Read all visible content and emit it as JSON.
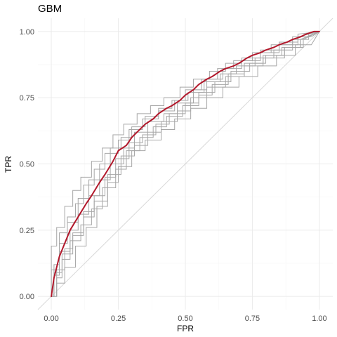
{
  "chart_data": {
    "type": "line",
    "title": "GBM",
    "xlabel": "FPR",
    "ylabel": "TPR",
    "xlim": [
      -0.05,
      1.05
    ],
    "ylim": [
      -0.05,
      1.05
    ],
    "x_ticks": [
      "0.00",
      "0.25",
      "0.50",
      "0.75",
      "1.00"
    ],
    "y_ticks": [
      "0.00",
      "0.25",
      "0.50",
      "0.75",
      "1.00"
    ],
    "grid": true,
    "legend": "none",
    "colors": {
      "fold_curves": "#a6a6a6",
      "mean_curve": "#b2182b",
      "diagonal": "#d9d9d9",
      "grid_major": "#ebebeb",
      "grid_minor": "#f5f5f5"
    },
    "reference_line": {
      "x": [
        0,
        1
      ],
      "y": [
        0,
        1
      ]
    },
    "series": [
      {
        "role": "mean",
        "x": [
          0.0,
          0.01,
          0.02,
          0.03,
          0.05,
          0.07,
          0.1,
          0.13,
          0.15,
          0.18,
          0.2,
          0.23,
          0.25,
          0.28,
          0.3,
          0.33,
          0.35,
          0.38,
          0.4,
          0.43,
          0.45,
          0.48,
          0.5,
          0.53,
          0.55,
          0.58,
          0.6,
          0.63,
          0.65,
          0.68,
          0.7,
          0.73,
          0.75,
          0.78,
          0.8,
          0.83,
          0.85,
          0.88,
          0.9,
          0.93,
          0.95,
          0.98,
          1.0
        ],
        "y": [
          0.0,
          0.07,
          0.11,
          0.15,
          0.2,
          0.25,
          0.3,
          0.35,
          0.38,
          0.43,
          0.46,
          0.51,
          0.55,
          0.57,
          0.6,
          0.63,
          0.65,
          0.67,
          0.69,
          0.71,
          0.72,
          0.74,
          0.76,
          0.78,
          0.8,
          0.82,
          0.83,
          0.85,
          0.86,
          0.87,
          0.88,
          0.9,
          0.91,
          0.92,
          0.93,
          0.94,
          0.95,
          0.96,
          0.97,
          0.98,
          0.99,
          1.0,
          1.0
        ]
      },
      {
        "role": "fold",
        "x": [
          0.0,
          0.01,
          0.01,
          0.03,
          0.03,
          0.06,
          0.06,
          0.1,
          0.1,
          0.14,
          0.14,
          0.18,
          0.18,
          0.22,
          0.22,
          0.26,
          0.26,
          0.3,
          0.3,
          0.35,
          0.35,
          0.4,
          0.4,
          0.45,
          0.45,
          0.5,
          0.5,
          0.56,
          0.56,
          0.62,
          0.62,
          0.68,
          0.68,
          0.75,
          0.75,
          0.82,
          0.82,
          0.9,
          0.9,
          0.97,
          1.0
        ],
        "y": [
          0.0,
          0.0,
          0.12,
          0.12,
          0.2,
          0.2,
          0.28,
          0.28,
          0.37,
          0.37,
          0.44,
          0.44,
          0.5,
          0.5,
          0.56,
          0.56,
          0.6,
          0.6,
          0.64,
          0.64,
          0.68,
          0.68,
          0.71,
          0.71,
          0.74,
          0.74,
          0.78,
          0.78,
          0.82,
          0.82,
          0.86,
          0.86,
          0.89,
          0.89,
          0.92,
          0.92,
          0.95,
          0.95,
          0.98,
          0.98,
          1.0
        ]
      },
      {
        "role": "fold",
        "x": [
          0.0,
          0.02,
          0.02,
          0.04,
          0.04,
          0.08,
          0.08,
          0.12,
          0.12,
          0.16,
          0.16,
          0.2,
          0.2,
          0.24,
          0.24,
          0.29,
          0.29,
          0.34,
          0.34,
          0.39,
          0.39,
          0.44,
          0.44,
          0.5,
          0.5,
          0.55,
          0.55,
          0.61,
          0.61,
          0.67,
          0.67,
          0.74,
          0.74,
          0.8,
          0.8,
          0.87,
          0.87,
          0.93,
          0.93,
          1.0
        ],
        "y": [
          0.0,
          0.0,
          0.07,
          0.07,
          0.16,
          0.16,
          0.24,
          0.24,
          0.32,
          0.32,
          0.38,
          0.38,
          0.45,
          0.45,
          0.52,
          0.52,
          0.58,
          0.58,
          0.61,
          0.61,
          0.65,
          0.65,
          0.69,
          0.69,
          0.73,
          0.73,
          0.77,
          0.77,
          0.81,
          0.81,
          0.85,
          0.85,
          0.88,
          0.88,
          0.91,
          0.91,
          0.94,
          0.94,
          0.97,
          1.0
        ]
      },
      {
        "role": "fold",
        "x": [
          0.0,
          0.0,
          0.02,
          0.02,
          0.05,
          0.05,
          0.08,
          0.08,
          0.11,
          0.11,
          0.15,
          0.15,
          0.19,
          0.19,
          0.23,
          0.23,
          0.27,
          0.27,
          0.32,
          0.32,
          0.37,
          0.37,
          0.42,
          0.42,
          0.48,
          0.48,
          0.53,
          0.53,
          0.59,
          0.59,
          0.65,
          0.65,
          0.71,
          0.71,
          0.78,
          0.78,
          0.85,
          0.85,
          0.92,
          0.92,
          1.0
        ],
        "y": [
          0.0,
          0.19,
          0.19,
          0.26,
          0.26,
          0.34,
          0.34,
          0.4,
          0.4,
          0.45,
          0.45,
          0.51,
          0.51,
          0.56,
          0.56,
          0.61,
          0.61,
          0.65,
          0.65,
          0.69,
          0.69,
          0.72,
          0.72,
          0.75,
          0.75,
          0.79,
          0.79,
          0.82,
          0.82,
          0.85,
          0.85,
          0.88,
          0.88,
          0.9,
          0.9,
          0.93,
          0.93,
          0.96,
          0.96,
          0.99,
          1.0
        ]
      },
      {
        "role": "fold",
        "x": [
          0.0,
          0.01,
          0.01,
          0.04,
          0.04,
          0.07,
          0.07,
          0.11,
          0.11,
          0.15,
          0.15,
          0.19,
          0.19,
          0.24,
          0.24,
          0.28,
          0.28,
          0.33,
          0.33,
          0.38,
          0.38,
          0.43,
          0.43,
          0.49,
          0.49,
          0.55,
          0.55,
          0.6,
          0.6,
          0.66,
          0.66,
          0.72,
          0.72,
          0.79,
          0.79,
          0.86,
          0.86,
          0.93,
          0.93,
          1.0
        ],
        "y": [
          0.0,
          0.0,
          0.09,
          0.09,
          0.14,
          0.14,
          0.21,
          0.21,
          0.27,
          0.27,
          0.33,
          0.33,
          0.41,
          0.41,
          0.48,
          0.48,
          0.55,
          0.55,
          0.6,
          0.6,
          0.64,
          0.64,
          0.68,
          0.68,
          0.72,
          0.72,
          0.76,
          0.76,
          0.8,
          0.8,
          0.84,
          0.84,
          0.88,
          0.88,
          0.91,
          0.91,
          0.94,
          0.94,
          0.97,
          1.0
        ]
      },
      {
        "role": "fold",
        "x": [
          0.0,
          0.02,
          0.02,
          0.05,
          0.05,
          0.09,
          0.09,
          0.13,
          0.13,
          0.17,
          0.17,
          0.21,
          0.21,
          0.25,
          0.25,
          0.3,
          0.3,
          0.35,
          0.35,
          0.41,
          0.41,
          0.46,
          0.46,
          0.52,
          0.52,
          0.58,
          0.58,
          0.64,
          0.64,
          0.7,
          0.7,
          0.77,
          0.77,
          0.84,
          0.84,
          0.91,
          0.91,
          0.97,
          1.0
        ],
        "y": [
          0.0,
          0.0,
          0.05,
          0.05,
          0.11,
          0.11,
          0.19,
          0.19,
          0.26,
          0.26,
          0.34,
          0.34,
          0.43,
          0.43,
          0.49,
          0.49,
          0.55,
          0.55,
          0.59,
          0.59,
          0.63,
          0.63,
          0.67,
          0.67,
          0.71,
          0.71,
          0.75,
          0.75,
          0.79,
          0.79,
          0.83,
          0.83,
          0.87,
          0.87,
          0.91,
          0.91,
          0.95,
          0.95,
          1.0
        ]
      },
      {
        "role": "fold",
        "x": [
          0.0,
          0.0,
          0.03,
          0.03,
          0.06,
          0.06,
          0.09,
          0.09,
          0.12,
          0.12,
          0.16,
          0.16,
          0.2,
          0.2,
          0.25,
          0.25,
          0.29,
          0.29,
          0.34,
          0.34,
          0.4,
          0.4,
          0.46,
          0.46,
          0.51,
          0.51,
          0.57,
          0.57,
          0.63,
          0.63,
          0.69,
          0.69,
          0.76,
          0.76,
          0.83,
          0.83,
          0.9,
          0.9,
          0.96,
          0.96,
          1.0
        ],
        "y": [
          0.0,
          0.1,
          0.1,
          0.24,
          0.24,
          0.3,
          0.3,
          0.35,
          0.35,
          0.42,
          0.42,
          0.48,
          0.48,
          0.54,
          0.54,
          0.59,
          0.59,
          0.63,
          0.63,
          0.67,
          0.67,
          0.7,
          0.7,
          0.74,
          0.74,
          0.77,
          0.77,
          0.81,
          0.81,
          0.84,
          0.84,
          0.87,
          0.87,
          0.9,
          0.9,
          0.93,
          0.93,
          0.97,
          0.97,
          0.99,
          1.0
        ]
      },
      {
        "role": "fold",
        "x": [
          0.0,
          0.01,
          0.01,
          0.03,
          0.03,
          0.07,
          0.07,
          0.1,
          0.1,
          0.14,
          0.14,
          0.18,
          0.18,
          0.22,
          0.22,
          0.27,
          0.27,
          0.31,
          0.31,
          0.36,
          0.36,
          0.42,
          0.42,
          0.47,
          0.47,
          0.53,
          0.53,
          0.58,
          0.58,
          0.64,
          0.64,
          0.71,
          0.71,
          0.78,
          0.78,
          0.85,
          0.85,
          0.92,
          0.92,
          1.0
        ],
        "y": [
          0.0,
          0.0,
          0.08,
          0.08,
          0.17,
          0.17,
          0.25,
          0.25,
          0.31,
          0.31,
          0.38,
          0.38,
          0.44,
          0.44,
          0.5,
          0.5,
          0.56,
          0.56,
          0.62,
          0.62,
          0.66,
          0.66,
          0.69,
          0.69,
          0.73,
          0.73,
          0.78,
          0.78,
          0.82,
          0.82,
          0.86,
          0.86,
          0.89,
          0.89,
          0.92,
          0.92,
          0.95,
          0.95,
          0.98,
          1.0
        ]
      },
      {
        "role": "fold",
        "x": [
          0.0,
          0.02,
          0.02,
          0.05,
          0.05,
          0.08,
          0.08,
          0.12,
          0.12,
          0.16,
          0.16,
          0.21,
          0.21,
          0.26,
          0.26,
          0.31,
          0.31,
          0.36,
          0.36,
          0.41,
          0.41,
          0.47,
          0.47,
          0.52,
          0.52,
          0.58,
          0.58,
          0.65,
          0.65,
          0.72,
          0.72,
          0.79,
          0.79,
          0.87,
          0.87,
          0.94,
          0.94,
          1.0
        ],
        "y": [
          0.0,
          0.0,
          0.1,
          0.1,
          0.18,
          0.18,
          0.23,
          0.23,
          0.3,
          0.3,
          0.36,
          0.36,
          0.46,
          0.46,
          0.53,
          0.53,
          0.57,
          0.57,
          0.62,
          0.62,
          0.66,
          0.66,
          0.7,
          0.7,
          0.75,
          0.75,
          0.79,
          0.79,
          0.83,
          0.83,
          0.87,
          0.87,
          0.9,
          0.9,
          0.94,
          0.94,
          0.97,
          1.0
        ]
      }
    ]
  }
}
